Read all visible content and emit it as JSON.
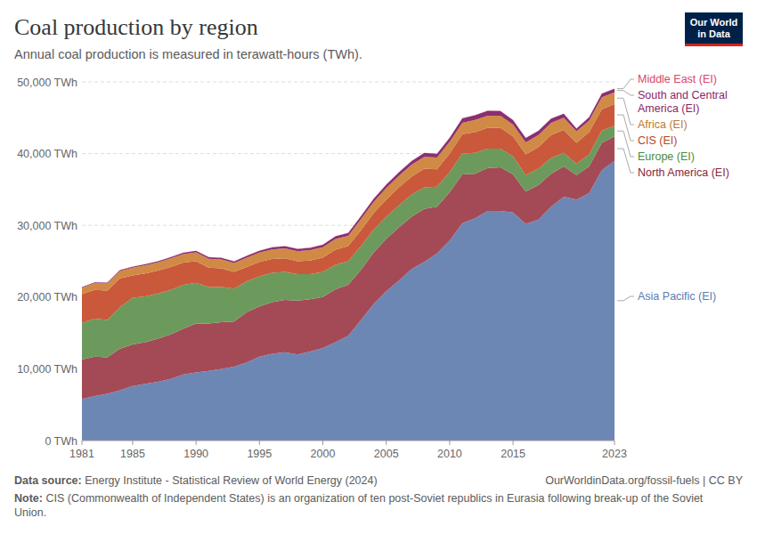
{
  "chart_data": {
    "type": "area",
    "stacked": true,
    "grid": true,
    "title": "Coal production by region",
    "subtitle": "Annual coal production is measured in terawatt-hours (TWh).",
    "source_label": "Data source:",
    "source": "Energy Institute - Statistical Review of World Energy (2024)",
    "url": "OurWorldinData.org/fossil-fuels | CC BY",
    "note_label": "Note:",
    "note": "CIS (Commonwealth of Independent States) is an organization of ten post-Soviet republics in Eurasia following break-up of the Soviet Union.",
    "logo": "Our World in Data",
    "x": [
      1981,
      1982,
      1983,
      1984,
      1985,
      1986,
      1987,
      1988,
      1989,
      1990,
      1991,
      1992,
      1993,
      1994,
      1995,
      1996,
      1997,
      1998,
      1999,
      2000,
      2001,
      2002,
      2003,
      2004,
      2005,
      2006,
      2007,
      2008,
      2009,
      2010,
      2011,
      2012,
      2013,
      2014,
      2015,
      2016,
      2017,
      2018,
      2019,
      2020,
      2021,
      2022,
      2023
    ],
    "xlim": [
      1981,
      2023
    ],
    "xticks": [
      1981,
      1985,
      1990,
      1995,
      2000,
      2005,
      2010,
      2015,
      2023
    ],
    "ylim": [
      0,
      50000
    ],
    "yticks": [
      {
        "value": 0,
        "label": "0 TWh"
      },
      {
        "value": 10000,
        "label": "10,000 TWh"
      },
      {
        "value": 20000,
        "label": "20,000 TWh"
      },
      {
        "value": 30000,
        "label": "30,000 TWh"
      },
      {
        "value": 40000,
        "label": "40,000 TWh"
      },
      {
        "value": 50000,
        "label": "50,000 TWh"
      }
    ],
    "series": [
      {
        "name": "Asia Pacific (EI)",
        "color": "#6d87b5",
        "values": [
          5800,
          6200,
          6500,
          7000,
          7600,
          7900,
          8200,
          8600,
          9200,
          9500,
          9700,
          10000,
          10300,
          10900,
          11700,
          12100,
          12300,
          12000,
          12400,
          12900,
          13700,
          14600,
          16800,
          19000,
          20800,
          22300,
          23900,
          24900,
          26100,
          27900,
          30300,
          31000,
          32000,
          32000,
          31800,
          30200,
          30800,
          32600,
          34000,
          33600,
          34500,
          37700,
          39000
        ]
      },
      {
        "name": "North America (EI)",
        "color": "#a34a56",
        "values": [
          5500,
          5500,
          5100,
          5800,
          5800,
          5800,
          6000,
          6200,
          6400,
          6800,
          6600,
          6500,
          6300,
          7000,
          7000,
          7200,
          7300,
          7500,
          7300,
          7100,
          7400,
          7100,
          7000,
          7200,
          7300,
          7400,
          7300,
          7400,
          6500,
          6700,
          6800,
          6200,
          6000,
          6100,
          5300,
          4500,
          4800,
          4600,
          4200,
          3400,
          3700,
          3800,
          3400
        ]
      },
      {
        "name": "Europe (EI)",
        "color": "#6c9a5c",
        "values": [
          5100,
          5300,
          5200,
          5800,
          6500,
          6400,
          6300,
          6200,
          6100,
          5700,
          5100,
          4900,
          4600,
          4300,
          4200,
          4100,
          3900,
          3700,
          3500,
          3500,
          3400,
          3300,
          3300,
          3200,
          3100,
          3100,
          3100,
          3000,
          2800,
          2800,
          2900,
          2900,
          2700,
          2600,
          2500,
          2300,
          2300,
          2200,
          1900,
          1600,
          1700,
          1700,
          1500
        ]
      },
      {
        "name": "CIS (EI)",
        "color": "#c9593a",
        "values": [
          4000,
          4000,
          4100,
          4000,
          3100,
          3200,
          3200,
          3200,
          3100,
          3000,
          2700,
          2600,
          2300,
          2000,
          2000,
          1900,
          1900,
          1800,
          1900,
          2000,
          2100,
          2100,
          2200,
          2300,
          2400,
          2500,
          2500,
          2600,
          2400,
          2600,
          2700,
          2900,
          2900,
          2900,
          2800,
          2900,
          3000,
          3200,
          3200,
          2900,
          3100,
          3000,
          3000
        ]
      },
      {
        "name": "Africa (EI)",
        "color": "#d08a45",
        "values": [
          900,
          950,
          1000,
          1050,
          1100,
          1150,
          1150,
          1200,
          1200,
          1250,
          1250,
          1250,
          1250,
          1300,
          1300,
          1350,
          1400,
          1400,
          1450,
          1450,
          1500,
          1450,
          1550,
          1550,
          1600,
          1600,
          1650,
          1650,
          1650,
          1650,
          1600,
          1700,
          1700,
          1700,
          1650,
          1650,
          1700,
          1700,
          1700,
          1600,
          1600,
          1650,
          1650
        ]
      },
      {
        "name": "South and Central America (EI)",
        "color": "#8a2f72",
        "values": [
          100,
          100,
          110,
          120,
          130,
          140,
          150,
          160,
          180,
          200,
          210,
          220,
          230,
          250,
          260,
          280,
          300,
          310,
          320,
          350,
          380,
          390,
          420,
          450,
          480,
          500,
          520,
          540,
          520,
          560,
          620,
          660,
          670,
          640,
          620,
          620,
          580,
          570,
          560,
          400,
          480,
          520,
          500
        ]
      },
      {
        "name": "Middle East (EI)",
        "color": "#d6416b",
        "values": [
          15,
          15,
          15,
          15,
          15,
          15,
          15,
          15,
          15,
          15,
          15,
          15,
          15,
          15,
          15,
          15,
          15,
          15,
          15,
          15,
          15,
          15,
          15,
          15,
          15,
          15,
          15,
          15,
          15,
          15,
          20,
          20,
          20,
          20,
          20,
          20,
          20,
          20,
          20,
          20,
          20,
          20,
          20
        ]
      }
    ]
  }
}
